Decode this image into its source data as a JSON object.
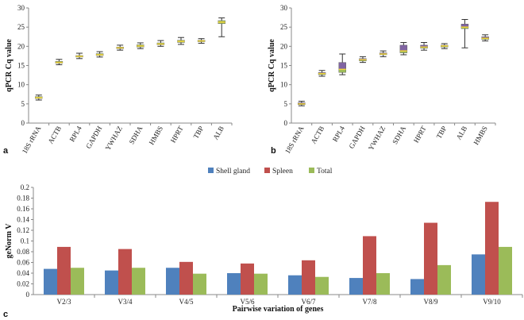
{
  "chart_data": [
    {
      "type": "box",
      "panel": "a",
      "ylabel": "qPCR Cq value",
      "ylim": [
        0,
        30
      ],
      "yticks": [
        0,
        5,
        10,
        15,
        20,
        25,
        30
      ],
      "categories": [
        "18S rRNA",
        "ACTB",
        "RPL4",
        "GAPDH",
        "YWHAZ",
        "SDHA",
        "HMBS",
        "HPRT",
        "TBP",
        "ALB"
      ],
      "boxes": [
        {
          "min": 6.0,
          "q1": 6.4,
          "median": 6.6,
          "q3": 6.9,
          "max": 7.3
        },
        {
          "min": 15.2,
          "q1": 15.6,
          "median": 15.8,
          "q3": 16.1,
          "max": 16.6
        },
        {
          "min": 16.8,
          "q1": 17.2,
          "median": 17.4,
          "q3": 17.6,
          "max": 18.2
        },
        {
          "min": 17.2,
          "q1": 17.6,
          "median": 17.8,
          "q3": 18.1,
          "max": 18.6
        },
        {
          "min": 19.0,
          "q1": 19.4,
          "median": 19.6,
          "q3": 19.8,
          "max": 20.3
        },
        {
          "min": 19.4,
          "q1": 19.8,
          "median": 20.1,
          "q3": 20.4,
          "max": 20.9
        },
        {
          "min": 20.0,
          "q1": 20.4,
          "median": 20.6,
          "q3": 20.9,
          "max": 21.5
        },
        {
          "min": 20.5,
          "q1": 21.0,
          "median": 21.3,
          "q3": 21.6,
          "max": 22.3
        },
        {
          "min": 20.8,
          "q1": 21.2,
          "median": 21.4,
          "q3": 21.6,
          "max": 22.0
        },
        {
          "min": 22.5,
          "q1": 25.9,
          "median": 26.3,
          "q3": 26.7,
          "max": 27.4
        }
      ]
    },
    {
      "type": "box",
      "panel": "b",
      "ylabel": "qPCR Cq value",
      "ylim": [
        0,
        30
      ],
      "yticks": [
        0,
        5,
        10,
        15,
        20,
        25,
        30
      ],
      "categories": [
        "18S rRNA",
        "ACTB",
        "RPL4",
        "GAPDH",
        "YWHAZ",
        "SDHA",
        "HPRT",
        "TBP",
        "ALB",
        "HMBS"
      ],
      "boxes": [
        {
          "min": 4.5,
          "q1": 4.8,
          "median": 5.0,
          "q3": 5.3,
          "max": 5.7
        },
        {
          "min": 12.2,
          "q1": 12.6,
          "median": 12.9,
          "q3": 13.2,
          "max": 13.7
        },
        {
          "min": 12.6,
          "q1": 13.2,
          "median": 14.0,
          "q3": 15.8,
          "max": 18.0
        },
        {
          "min": 15.8,
          "q1": 16.2,
          "median": 16.5,
          "q3": 16.8,
          "max": 17.3
        },
        {
          "min": 17.3,
          "q1": 17.8,
          "median": 18.0,
          "q3": 18.3,
          "max": 18.8
        },
        {
          "min": 17.8,
          "q1": 18.3,
          "median": 18.8,
          "q3": 20.3,
          "max": 21.0
        },
        {
          "min": 19.0,
          "q1": 19.5,
          "median": 19.8,
          "q3": 20.3,
          "max": 21.0
        },
        {
          "min": 19.4,
          "q1": 19.8,
          "median": 20.1,
          "q3": 20.3,
          "max": 20.7
        },
        {
          "min": 19.6,
          "q1": 24.6,
          "median": 25.0,
          "q3": 25.8,
          "max": 27.0
        },
        {
          "min": 21.4,
          "q1": 21.8,
          "median": 22.1,
          "q3": 22.5,
          "max": 23.0
        }
      ]
    },
    {
      "type": "bar",
      "panel": "c",
      "ylabel": "geNorm V",
      "xlabel": "Pairwise variation of genes",
      "ylim": [
        0,
        0.2
      ],
      "yticks": [
        "0",
        "0.02",
        "0.04",
        "0.06",
        "0.08",
        "0.1",
        "0.12",
        "0.14",
        "0.16",
        "0.18",
        "0.2"
      ],
      "categories": [
        "V2/3",
        "V3/4",
        "V4/5",
        "V5/6",
        "V6/7",
        "V7/8",
        "V8/9",
        "V9/10"
      ],
      "series": [
        {
          "name": "Shell gland",
          "color": "#4f81bd",
          "values": [
            0.048,
            0.045,
            0.05,
            0.04,
            0.036,
            0.031,
            0.029,
            0.075
          ]
        },
        {
          "name": "Spleen",
          "color": "#c0504d",
          "values": [
            0.089,
            0.085,
            0.061,
            0.058,
            0.064,
            0.109,
            0.134,
            0.173
          ]
        },
        {
          "name": "Total",
          "color": "#9bbb59",
          "values": [
            0.05,
            0.05,
            0.039,
            0.039,
            0.033,
            0.04,
            0.055,
            0.089
          ]
        }
      ],
      "legend": "top-center"
    }
  ],
  "colors": {
    "box_fill": "#9bbb59",
    "box_fill_alt": "#8064a2",
    "median": "#f2d43a",
    "whisker": "#333333",
    "axis": "#888888"
  }
}
